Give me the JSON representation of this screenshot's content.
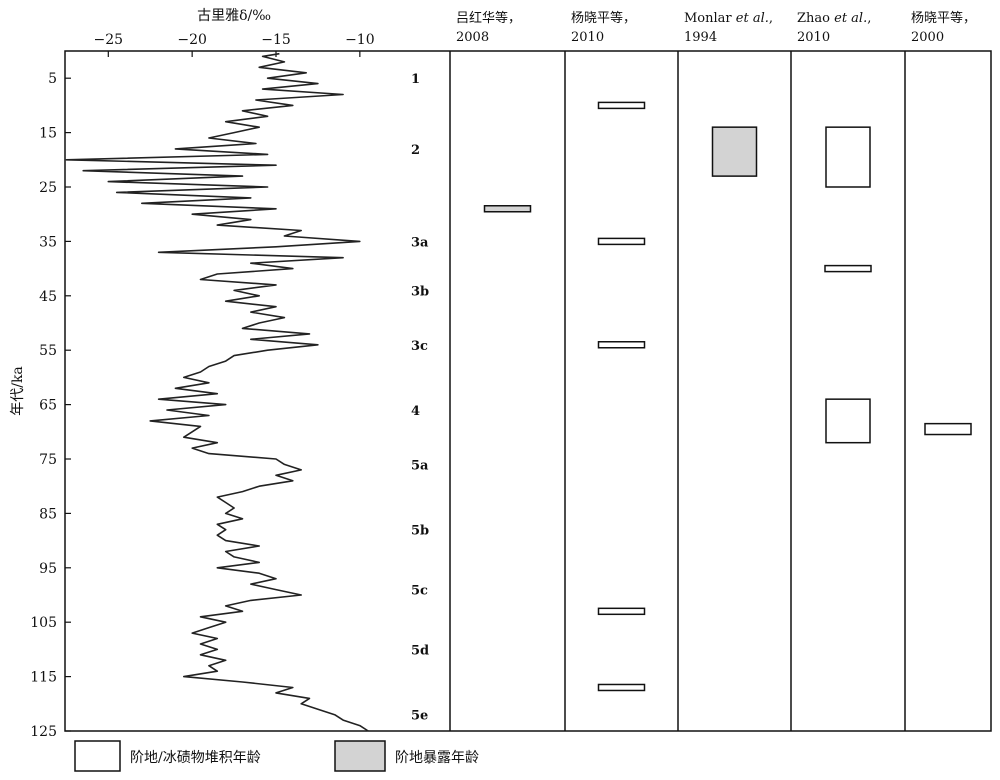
{
  "chart_data": {
    "type": "line",
    "x_axis": {
      "title": "古里雅δ/‰",
      "ticks": [
        -25,
        -20,
        -15,
        -10
      ],
      "tick_labels": [
        "−25",
        "−20",
        "−15",
        "−10"
      ],
      "range": [
        -28,
        -8.5
      ]
    },
    "y_axis": {
      "title": "年代/ka",
      "ticks": [
        5,
        15,
        25,
        35,
        45,
        55,
        65,
        75,
        85,
        95,
        105,
        115,
        125
      ],
      "range": [
        0,
        125
      ],
      "reversed": true
    },
    "series": {
      "age_ka": [
        0.5,
        1,
        2,
        3,
        4,
        5,
        6,
        7,
        8,
        9,
        10,
        11,
        12,
        13,
        14,
        15,
        16,
        17,
        18,
        19,
        20,
        21,
        22,
        23,
        24,
        25,
        26,
        27,
        28,
        29,
        30,
        31,
        32,
        33,
        34,
        35,
        36,
        37,
        38,
        39,
        40,
        41,
        42,
        43,
        44,
        45,
        46,
        47,
        48,
        49,
        50,
        51,
        52,
        53,
        54,
        55,
        56,
        57,
        58,
        59,
        60,
        61,
        62,
        63,
        64,
        65,
        66,
        67,
        68,
        69,
        70,
        71,
        72,
        73,
        74,
        75,
        76,
        77,
        78,
        79,
        80,
        81,
        82,
        83,
        84,
        85,
        86,
        87,
        88,
        89,
        90,
        91,
        92,
        93,
        94,
        95,
        96,
        97,
        98,
        99,
        100,
        101,
        102,
        103,
        104,
        105,
        106,
        107,
        108,
        109,
        110,
        111,
        112,
        113,
        114,
        115,
        116,
        117,
        118,
        119,
        120,
        121,
        122,
        123,
        124,
        125
      ],
      "delta": [
        -14.8,
        -15.8,
        -14.5,
        -16.0,
        -13.2,
        -15.5,
        -12.5,
        -15.8,
        -11.0,
        -16.2,
        -14.0,
        -17.0,
        -15.5,
        -18.0,
        -16.0,
        -17.5,
        -19.0,
        -16.2,
        -21.0,
        -15.5,
        -27.5,
        -15.0,
        -26.5,
        -17.0,
        -25.0,
        -15.5,
        -24.5,
        -16.5,
        -23.0,
        -15.0,
        -20.0,
        -16.5,
        -18.5,
        -13.5,
        -14.5,
        -10.0,
        -15.0,
        -22.0,
        -11.0,
        -16.5,
        -14.0,
        -18.5,
        -19.5,
        -15.0,
        -17.5,
        -16.0,
        -18.0,
        -15.0,
        -16.5,
        -14.5,
        -16.0,
        -17.0,
        -13.0,
        -16.5,
        -12.5,
        -15.5,
        -17.5,
        -18.0,
        -19.0,
        -19.5,
        -20.5,
        -19.0,
        -21.0,
        -18.5,
        -22.0,
        -18.0,
        -21.5,
        -19.0,
        -22.5,
        -19.5,
        -20.0,
        -20.5,
        -18.5,
        -20.0,
        -19.0,
        -15.0,
        -14.5,
        -13.5,
        -15.0,
        -14.0,
        -16.0,
        -17.0,
        -18.5,
        -18.0,
        -17.5,
        -18.0,
        -17.0,
        -18.5,
        -18.0,
        -18.5,
        -18.0,
        -16.0,
        -18.0,
        -17.5,
        -16.0,
        -18.5,
        -16.0,
        -15.0,
        -16.5,
        -15.0,
        -13.5,
        -16.5,
        -18.0,
        -17.0,
        -19.5,
        -18.0,
        -19.0,
        -20.0,
        -18.5,
        -19.5,
        -18.5,
        -19.5,
        -18.0,
        -19.0,
        -18.5,
        -20.5,
        -17.0,
        -14.0,
        -15.0,
        -13.0,
        -13.5,
        -12.5,
        -11.5,
        -11.0,
        -10.0,
        -9.5
      ]
    },
    "stages": [
      {
        "label": "1",
        "age": 5
      },
      {
        "label": "2",
        "age": 18
      },
      {
        "label": "3a",
        "age": 35
      },
      {
        "label": "3b",
        "age": 44
      },
      {
        "label": "3c",
        "age": 54
      },
      {
        "label": "4",
        "age": 66
      },
      {
        "label": "5a",
        "age": 76
      },
      {
        "label": "5b",
        "age": 88
      },
      {
        "label": "5c",
        "age": 99
      },
      {
        "label": "5d",
        "age": 110
      },
      {
        "label": "5e",
        "age": 122
      }
    ],
    "columns": [
      {
        "title_lines": [
          "吕红华等，",
          "2008"
        ],
        "boxes": [
          {
            "from": 28.5,
            "to": 29.5,
            "kind": "exposure"
          }
        ]
      },
      {
        "title_lines": [
          "杨晓平等，",
          "2010"
        ],
        "boxes": [
          {
            "from": 9.5,
            "to": 10.5,
            "kind": "deposit"
          },
          {
            "from": 34.5,
            "to": 35.5,
            "kind": "deposit"
          },
          {
            "from": 53.5,
            "to": 54.5,
            "kind": "deposit"
          },
          {
            "from": 102.5,
            "to": 103.5,
            "kind": "deposit"
          },
          {
            "from": 116.5,
            "to": 117.5,
            "kind": "deposit"
          }
        ]
      },
      {
        "title_lines": [
          "Monlar et al.,",
          "1994"
        ],
        "boxes": [
          {
            "from": 14,
            "to": 23,
            "kind": "exposure"
          }
        ]
      },
      {
        "title_lines": [
          "Zhao et al.,",
          "2010"
        ],
        "boxes": [
          {
            "from": 14,
            "to": 25,
            "kind": "deposit"
          },
          {
            "from": 39.5,
            "to": 40.5,
            "kind": "deposit"
          },
          {
            "from": 64,
            "to": 72,
            "kind": "deposit"
          }
        ]
      },
      {
        "title_lines": [
          "杨晓平等，",
          "2000"
        ],
        "boxes": [
          {
            "from": 68.5,
            "to": 70.5,
            "kind": "deposit"
          }
        ]
      }
    ],
    "legend": [
      {
        "label": "阶地/冰碛物堆积年龄",
        "kind": "deposit"
      },
      {
        "label": "阶地暴露年龄",
        "kind": "exposure"
      }
    ],
    "colors": {
      "line": "#222222",
      "exposure_fill": "#d3d3d3",
      "deposit_fill": "#ffffff",
      "frame": "#111111"
    }
  }
}
